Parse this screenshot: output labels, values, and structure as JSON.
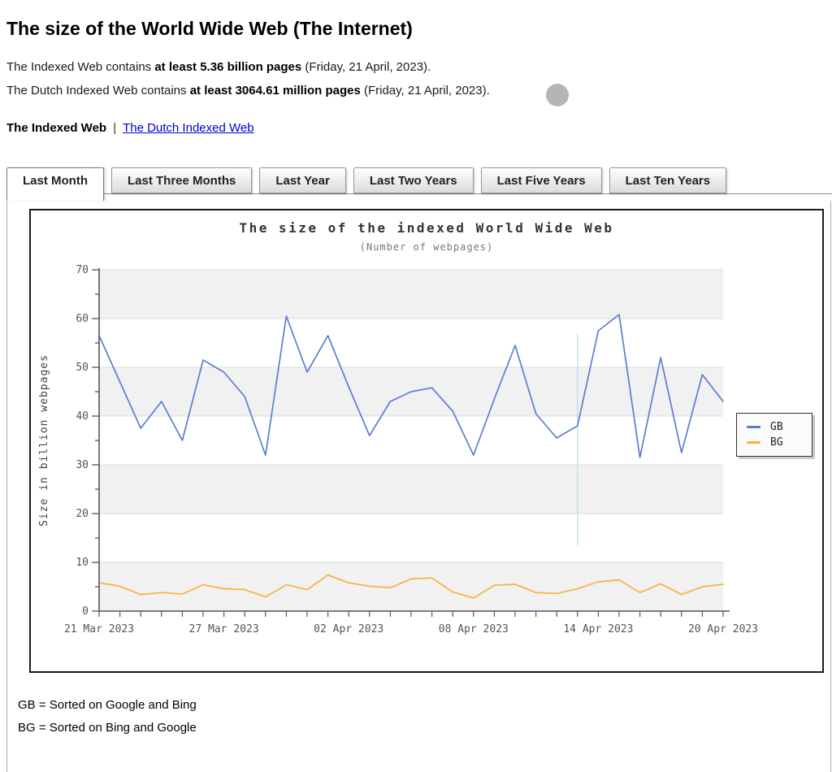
{
  "header": {
    "title": "The size of the World Wide Web (The Internet)",
    "line1": {
      "pre": "The Indexed Web contains ",
      "bold": "at least 5.36 billion pages",
      "post": " (Friday, 21 April, 2023)."
    },
    "line2": {
      "pre": "The Dutch Indexed Web contains ",
      "bold": "at least 3064.61 million pages",
      "post": " (Friday, 21 April, 2023)."
    },
    "nav": {
      "current": "The Indexed Web",
      "separator": "|",
      "link": "The Dutch Indexed Web"
    }
  },
  "tabs": {
    "items": [
      {
        "label": "Last Month",
        "active": true
      },
      {
        "label": "Last Three Months",
        "active": false
      },
      {
        "label": "Last Year",
        "active": false
      },
      {
        "label": "Last Two Years",
        "active": false
      },
      {
        "label": "Last Five Years",
        "active": false
      },
      {
        "label": "Last Ten Years",
        "active": false
      }
    ]
  },
  "chart_data": {
    "type": "line",
    "title": "The size of the indexed World Wide Web",
    "subtitle": "(Number of webpages)",
    "ylabel": "Size in billion webpages",
    "ylim": [
      0,
      70
    ],
    "y_major_step": 10,
    "y_minor_step": 5,
    "x_point_count": 31,
    "x_tick_labels": [
      {
        "index": 0,
        "label": "21 Mar 2023"
      },
      {
        "index": 6,
        "label": "27 Mar 2023"
      },
      {
        "index": 12,
        "label": "02 Apr 2023"
      },
      {
        "index": 18,
        "label": "08 Apr 2023"
      },
      {
        "index": 24,
        "label": "14 Apr 2023"
      },
      {
        "index": 30,
        "label": "20 Apr 2023"
      }
    ],
    "grid": "horizontal bands, alternating gray stripes every 10 units",
    "legend_position": "right",
    "series": [
      {
        "name": "GB",
        "color": "#5b7ed0",
        "values": [
          56.5,
          47,
          37.5,
          43,
          35,
          51.5,
          49,
          44,
          32,
          60.5,
          49,
          56.5,
          46,
          36,
          43,
          45,
          45.8,
          41,
          32,
          43.5,
          54.5,
          40.5,
          35.5,
          38,
          57.5,
          60.8,
          31.5,
          52,
          32.5,
          48.5,
          43
        ]
      },
      {
        "name": "BG",
        "color": "#f8b13c",
        "values": [
          5.8,
          5.1,
          3.4,
          3.8,
          3.5,
          5.4,
          4.6,
          4.4,
          2.9,
          5.4,
          4.4,
          7.4,
          5.8,
          5.1,
          4.8,
          6.6,
          6.8,
          3.9,
          2.7,
          5.3,
          5.5,
          3.8,
          3.6,
          4.6,
          6.0,
          6.4,
          3.8,
          5.6,
          3.4,
          5.0,
          5.5
        ]
      }
    ],
    "stray_cursor_line": {
      "day_index": 23,
      "value_top": 57,
      "value_bottom": 13.5,
      "color": "#b9ddef"
    }
  },
  "footnotes": {
    "line1": "GB = Sorted on Google and Bing",
    "line2": "BG = Sorted on Bing and Google"
  },
  "colors": {
    "link_blue": "#0000cc",
    "band_gray": "#f1f1f1",
    "axis_dark": "#555555",
    "gridline": "#dcdcdc"
  }
}
